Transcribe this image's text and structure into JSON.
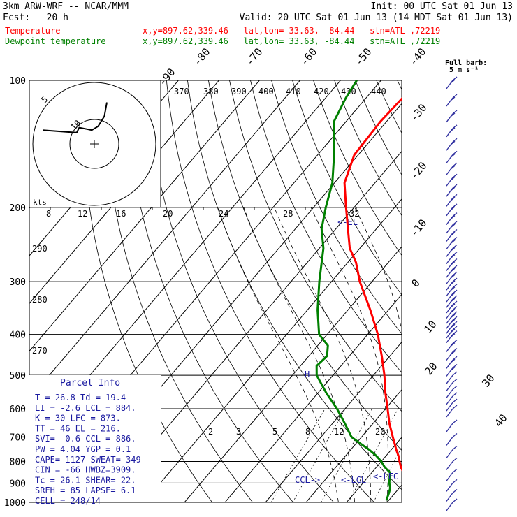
{
  "header": {
    "model": "3km ARW-WRF -- NCAR/MMM",
    "init": "Init: 00 UTC Sat 01 Jun 13",
    "fcst": "Fcst:   20 h",
    "valid": "Valid: 20 UTC Sat 01 Jun 13 (14 MDT Sat 01 Jun 13)",
    "temp_label": "Temperature",
    "dew_label": "Dewpoint temperature",
    "loc_info": "x,y=897.62,339.46   lat,lon= 33.63, -84.44   stn=ATL ,72219"
  },
  "colors": {
    "temperature": "#ff0000",
    "dewpoint": "#008000",
    "barbs": "#3030a0",
    "parcel_text": "#1a1aa0"
  },
  "barb_header": [
    "Full barb:",
    "5 m s⁻¹"
  ],
  "hodograph": {
    "unit_label": "kts",
    "ring_labels": [
      "5",
      "10"
    ]
  },
  "parcel_info": {
    "title": "Parcel Info",
    "rows": [
      "T  =   26.8  Td = 19.4",
      "LI =   -2.6  LCL = 884.",
      "K  =     30  LFC = 873.",
      "TT =     46  EL  = 216.",
      "SVI=   -0.6  CCL = 886.",
      "PW =   4.04  YGP =  0.1",
      "CAPE=  1127  SWEAT= 349",
      "CIN =   -66  HWBZ=3909.",
      "Tc  =  26.1  SHEAR= 22.",
      "SREH =   85  LAPSE= 6.1",
      "CELL = 248/14"
    ]
  },
  "annotations": {
    "el": "<-EL",
    "ccl": "CCL->",
    "lcl": "<-LCL",
    "lfc": "<-LFC",
    "wbz": "H"
  },
  "chart_data": {
    "type": "line",
    "chart_kind": "Skew-T log-P",
    "y_axis": {
      "quantity": "pressure (hPa)",
      "scale": "log",
      "reversed": true,
      "range": [
        1000,
        100
      ],
      "tick_labels": [
        "100",
        "200",
        "300",
        "400",
        "500",
        "600",
        "700",
        "800",
        "900",
        "1000"
      ]
    },
    "isotherm_labels": [
      "-90",
      "-80",
      "-70",
      "-60",
      "-50",
      "-40",
      "-30",
      "-20",
      "-10",
      "0",
      "10",
      "20",
      "30",
      "40"
    ],
    "dry_adiabat_labels": [
      "270",
      "280",
      "290",
      "370",
      "380",
      "390",
      "400",
      "410",
      "420",
      "430",
      "440"
    ],
    "mixing_ratio_labels": [
      "2",
      "3",
      "5",
      "8",
      "12",
      "20"
    ],
    "hodograph_speed_labels": [
      "8",
      "12",
      "16",
      "20",
      "24",
      "28",
      "32"
    ],
    "series": [
      {
        "name": "Temperature",
        "color": "#ff0000",
        "points": [
          [
            989,
            26.8
          ],
          [
            950,
            23.5
          ],
          [
            925,
            21.8
          ],
          [
            900,
            20.2
          ],
          [
            875,
            19.0
          ],
          [
            850,
            17.8
          ],
          [
            825,
            16.0
          ],
          [
            800,
            14.5
          ],
          [
            775,
            13.0
          ],
          [
            750,
            11.2
          ],
          [
            725,
            9.5
          ],
          [
            700,
            7.7
          ],
          [
            650,
            4.0
          ],
          [
            600,
            0.5
          ],
          [
            550,
            -3.4
          ],
          [
            500,
            -7.3
          ],
          [
            450,
            -12.0
          ],
          [
            400,
            -17.5
          ],
          [
            350,
            -24.5
          ],
          [
            300,
            -33.0
          ],
          [
            270,
            -38.0
          ],
          [
            250,
            -42.5
          ],
          [
            225,
            -47.0
          ],
          [
            200,
            -52.0
          ],
          [
            175,
            -57.5
          ],
          [
            150,
            -61.0
          ],
          [
            125,
            -61.5
          ],
          [
            110,
            -61.0
          ],
          [
            100,
            -59.5
          ]
        ]
      },
      {
        "name": "Dewpoint temperature",
        "color": "#008000",
        "points": [
          [
            989,
            19.4
          ],
          [
            950,
            18.5
          ],
          [
            925,
            17.8
          ],
          [
            900,
            16.5
          ],
          [
            875,
            15.5
          ],
          [
            850,
            14.5
          ],
          [
            825,
            12.0
          ],
          [
            800,
            10.0
          ],
          [
            775,
            7.5
          ],
          [
            750,
            4.5
          ],
          [
            725,
            1.0
          ],
          [
            700,
            -2.5
          ],
          [
            650,
            -7.0
          ],
          [
            600,
            -12.0
          ],
          [
            550,
            -18.0
          ],
          [
            500,
            -24.0
          ],
          [
            475,
            -26.0
          ],
          [
            450,
            -25.5
          ],
          [
            425,
            -27.5
          ],
          [
            400,
            -32.0
          ],
          [
            350,
            -37.5
          ],
          [
            300,
            -43.0
          ],
          [
            250,
            -49.0
          ],
          [
            225,
            -53.5
          ],
          [
            200,
            -57.0
          ],
          [
            175,
            -60.5
          ],
          [
            150,
            -66.0
          ],
          [
            125,
            -73.0
          ],
          [
            110,
            -75.0
          ],
          [
            100,
            -76.0
          ]
        ]
      }
    ],
    "wind_barbs": {
      "pressure_levels": [
        100,
        110,
        120,
        130,
        140,
        150,
        160,
        170,
        180,
        190,
        200,
        210,
        220,
        230,
        240,
        250,
        260,
        270,
        280,
        290,
        300,
        310,
        320,
        330,
        340,
        350,
        360,
        370,
        380,
        390,
        400,
        420,
        440,
        460,
        480,
        500,
        520,
        540,
        560,
        580,
        600,
        650,
        700,
        750,
        800,
        850,
        900,
        950,
        1000
      ]
    },
    "hodograph": {
      "trace": [
        [
          -41,
          11
        ],
        [
          -28,
          10
        ],
        [
          -14,
          9
        ],
        [
          -12,
          13
        ],
        [
          -2,
          11
        ],
        [
          3,
          14
        ],
        [
          8,
          22
        ],
        [
          10,
          33
        ]
      ]
    }
  }
}
